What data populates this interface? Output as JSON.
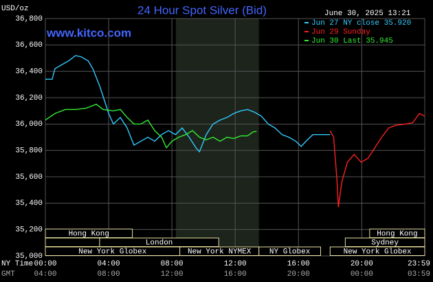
{
  "chart_data": {
    "type": "line",
    "title": "24 Hour Spot Silver (Bid)",
    "unit_label": "USD/oz",
    "timestamp": "June 30, 2025 13:21",
    "watermark": "www.kitco.com",
    "x_row_label": "NY Time",
    "x2_row_label": "GMT",
    "xlim": [
      0,
      23.983
    ],
    "xticks": [
      {
        "value": 0,
        "label": "00:00",
        "gmt": "04:00"
      },
      {
        "value": 4,
        "label": "04:00",
        "gmt": "08:00"
      },
      {
        "value": 8,
        "label": "08:00",
        "gmt": "12:00"
      },
      {
        "value": 12,
        "label": "12:00",
        "gmt": "16:00"
      },
      {
        "value": 16,
        "label": "16:00",
        "gmt": "20:00"
      },
      {
        "value": 20,
        "label": "20:00",
        "gmt": "00:00"
      },
      {
        "value": 23.983,
        "label": "23:59",
        "gmt": "03:59"
      }
    ],
    "ylim": [
      35.0,
      36.8
    ],
    "yticks": [
      {
        "value": 35.0,
        "label": "35,000"
      },
      {
        "value": 35.2,
        "label": "35,200"
      },
      {
        "value": 35.4,
        "label": "35,400"
      },
      {
        "value": 35.6,
        "label": "35,600"
      },
      {
        "value": 35.8,
        "label": "35,800"
      },
      {
        "value": 36.0,
        "label": "36,000"
      },
      {
        "value": 36.2,
        "label": "36,200"
      },
      {
        "value": 36.4,
        "label": "36,400"
      },
      {
        "value": 36.6,
        "label": "36,600"
      },
      {
        "value": 36.8,
        "label": "36,800"
      }
    ],
    "grid": true,
    "highlight": [
      8.25,
      13.5
    ],
    "sessions": [
      [
        {
          "label": "Hong Kong",
          "start": 0,
          "end": 5.5
        },
        {
          "label": "Hong Kong",
          "start": 20.5,
          "end": 23.983
        }
      ],
      [
        {
          "label": null,
          "start": 0,
          "end": 3.43
        },
        {
          "label": "London",
          "start": 3.43,
          "end": 10.96
        },
        {
          "label": "Sydney",
          "start": 18.96,
          "end": 23.983
        }
      ],
      [
        {
          "label": "New York Globex",
          "start": 0,
          "end": 8.5
        },
        {
          "label": "New York NYMEX",
          "start": 8.5,
          "end": 13.5
        },
        {
          "label": "NY Globex",
          "start": 13.5,
          "end": 17.4
        },
        {
          "label": "New York Globex",
          "start": 18,
          "end": 23.983
        }
      ]
    ],
    "series": [
      {
        "name": "Jun 27 NY close 35.920",
        "color": "#33ccff",
        "x": [
          0,
          0.43,
          0.61,
          1.04,
          1.48,
          1.91,
          2.26,
          2.7,
          3.0,
          3.43,
          3.65,
          4.0,
          4.3,
          4.74,
          5.17,
          5.6,
          6.04,
          6.48,
          6.91,
          7.35,
          7.78,
          8.22,
          8.65,
          9.09,
          9.52,
          9.74,
          10.17,
          10.6,
          11.04,
          11.48,
          11.91,
          12.35,
          12.78,
          13.22,
          13.65,
          14.09,
          14.52,
          14.96,
          15.39,
          15.83,
          16.17,
          16.48,
          16.91,
          17.35,
          18.0
        ],
        "values": [
          36.34,
          36.34,
          36.42,
          36.45,
          36.48,
          36.52,
          36.51,
          36.48,
          36.42,
          36.29,
          36.21,
          36.08,
          36.0,
          36.05,
          35.97,
          35.84,
          35.87,
          35.9,
          35.87,
          35.92,
          35.95,
          35.92,
          35.97,
          35.9,
          35.82,
          35.79,
          35.92,
          36.0,
          36.03,
          36.05,
          36.08,
          36.1,
          36.11,
          36.09,
          36.06,
          36.0,
          35.97,
          35.92,
          35.9,
          35.87,
          35.83,
          35.87,
          35.92,
          35.92,
          35.92
        ]
      },
      {
        "name": "Jun 29 Sunday",
        "color": "#ff2020",
        "x": [
          18.0,
          18.22,
          18.43,
          18.52,
          18.74,
          19.09,
          19.52,
          19.96,
          20.39,
          20.83,
          21.26,
          21.7,
          22.13,
          22.78,
          23.22,
          23.65,
          23.98
        ],
        "values": [
          35.95,
          35.9,
          35.58,
          35.37,
          35.56,
          35.71,
          35.77,
          35.71,
          35.74,
          35.82,
          35.9,
          35.97,
          35.99,
          36.0,
          36.01,
          36.08,
          36.06
        ]
      },
      {
        "name": "Jun 30 Last 35.945",
        "color": "#33ee33",
        "x": [
          0,
          0.61,
          1.26,
          1.91,
          2.57,
          3.22,
          3.65,
          4.3,
          4.74,
          5.17,
          5.6,
          6.04,
          6.48,
          6.91,
          7.35,
          7.65,
          8.0,
          8.43,
          8.87,
          9.3,
          9.74,
          10.17,
          10.6,
          11.04,
          11.48,
          11.91,
          12.35,
          12.78,
          13.13,
          13.35
        ],
        "values": [
          36.03,
          36.08,
          36.11,
          36.11,
          36.12,
          36.15,
          36.11,
          36.1,
          36.11,
          36.05,
          36.0,
          36.0,
          36.03,
          35.95,
          35.9,
          35.82,
          35.87,
          35.9,
          35.92,
          35.95,
          35.9,
          35.88,
          35.9,
          35.87,
          35.9,
          35.89,
          35.91,
          35.91,
          35.94,
          35.945
        ]
      }
    ]
  }
}
